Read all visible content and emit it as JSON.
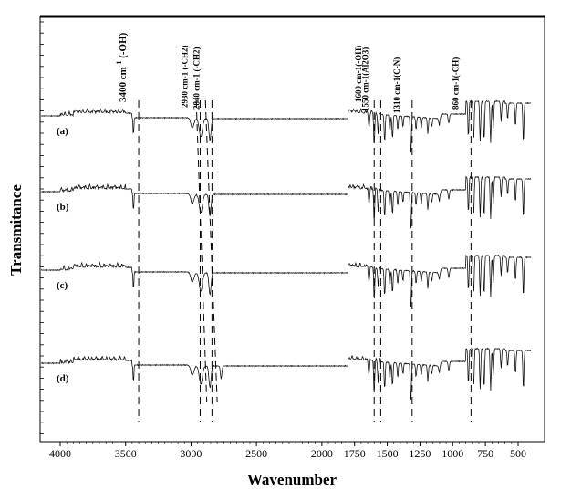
{
  "chart_data": {
    "type": "line",
    "title": "",
    "xlabel": "Wavenumber",
    "ylabel": "Transmitance",
    "xlim": [
      4200,
      380
    ],
    "x_ticks": [
      4000,
      3500,
      3000,
      2500,
      2000,
      1750,
      1500,
      1250,
      1000,
      750,
      500
    ],
    "x_tick_labels": [
      "4000",
      "3500",
      "3000",
      "2500",
      "2000",
      "1750",
      "1500",
      "1250",
      "1000",
      "750",
      "500"
    ],
    "series": [
      {
        "name": "(a)",
        "label": "(a)",
        "offset": 0
      },
      {
        "name": "(b)",
        "label": "(b)",
        "offset": 1
      },
      {
        "name": "(c)",
        "label": "(c)",
        "offset": 2
      },
      {
        "name": "(d)",
        "label": "(d)",
        "offset": 3
      }
    ],
    "annotations": [
      {
        "id": "oh3400",
        "wavenumber": 3400,
        "main": "3400 cm",
        "sup": "-1",
        "suffix": " (-OH)",
        "big": true
      },
      {
        "id": "ch2930",
        "wavenumber": 2930,
        "text": "2930 cm-1 (-CH2)"
      },
      {
        "id": "ch2840",
        "wavenumber": 2840,
        "text": "2840 cm-1 (-CH2)"
      },
      {
        "id": "oh1600",
        "wavenumber": 1600,
        "text": "1600 cm-1(-OH)"
      },
      {
        "id": "al1550",
        "wavenumber": 1550,
        "text": "1550 cm-1(Al2O3)"
      },
      {
        "id": "cn1310",
        "wavenumber": 1310,
        "text": "1310 cm-1(C-N)"
      },
      {
        "id": "ch860",
        "wavenumber": 860,
        "text": "860 cm-1(-CH)"
      }
    ],
    "grid": false,
    "legend": "none"
  }
}
